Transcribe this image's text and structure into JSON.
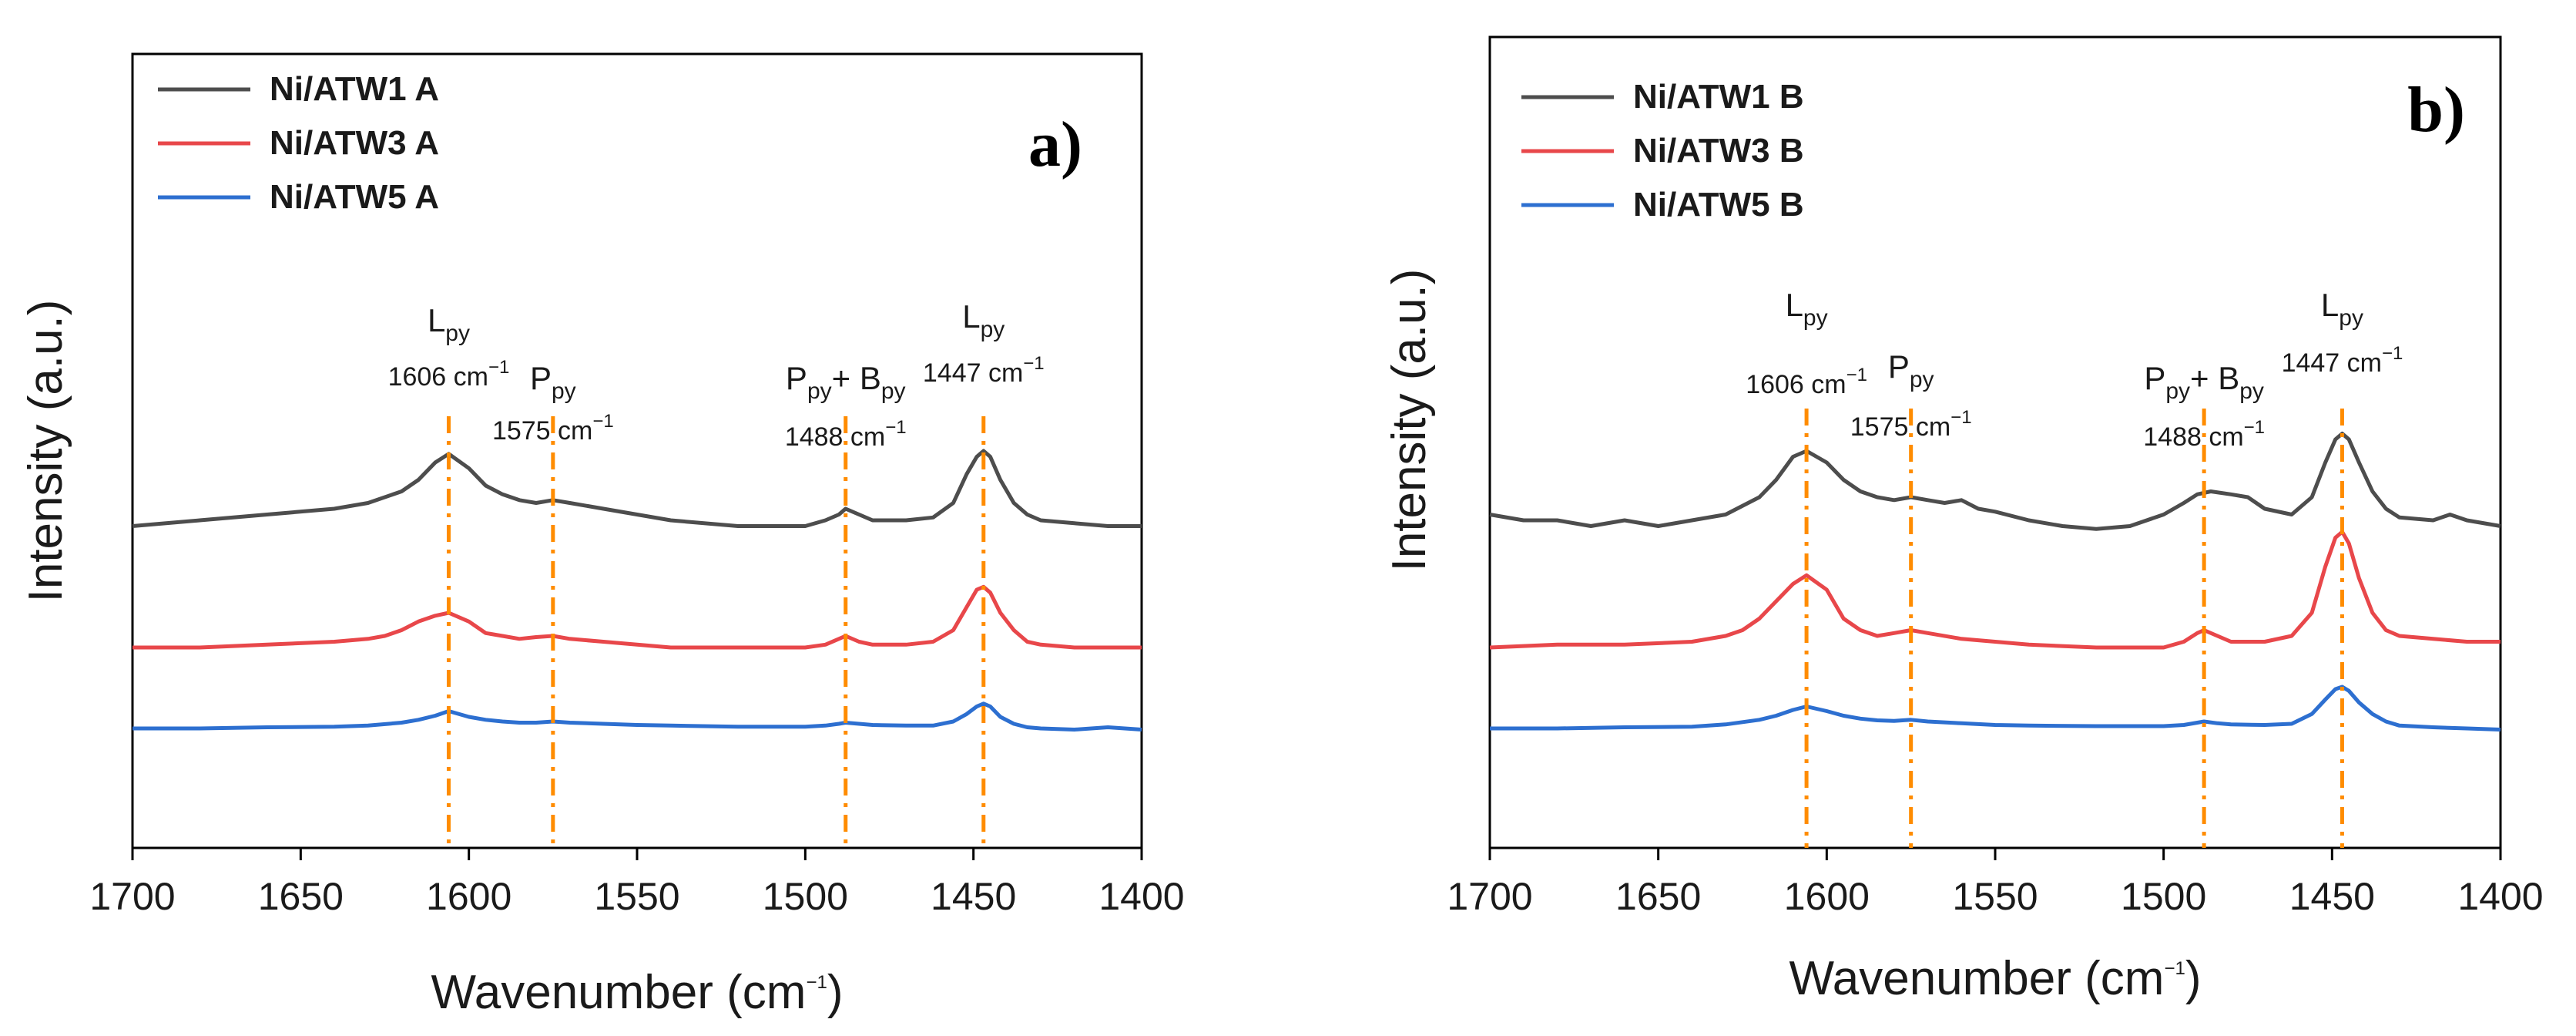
{
  "chart_data": [
    {
      "type": "line",
      "panel_label": "a)",
      "xlabel": "Wavenumber (cm",
      "xlabel_sup": "−1",
      "xlabel_end": ")",
      "ylabel": "Intensity (a.u.)",
      "xlim": [
        1700,
        1400
      ],
      "x_reversed": true,
      "ylim": [
        0,
        1
      ],
      "y_ticks_shown": false,
      "x_ticks": [
        1700,
        1650,
        1600,
        1550,
        1500,
        1450,
        1400
      ],
      "legend_position": "top-left",
      "series": [
        {
          "name": "Ni/ATW1 A",
          "color": "#4d4d4d",
          "x": [
            1700,
            1680,
            1660,
            1640,
            1630,
            1620,
            1615,
            1610,
            1606,
            1600,
            1595,
            1590,
            1585,
            1580,
            1575,
            1570,
            1560,
            1550,
            1540,
            1520,
            1500,
            1494,
            1490,
            1488,
            1484,
            1480,
            1470,
            1462,
            1456,
            1452,
            1449,
            1447,
            1445,
            1442,
            1438,
            1434,
            1430,
            1420,
            1410,
            1400
          ],
          "y": [
            0.49,
            0.5,
            0.51,
            0.52,
            0.53,
            0.55,
            0.57,
            0.6,
            0.615,
            0.59,
            0.56,
            0.545,
            0.535,
            0.53,
            0.535,
            0.53,
            0.52,
            0.51,
            0.5,
            0.49,
            0.49,
            0.5,
            0.51,
            0.52,
            0.51,
            0.5,
            0.5,
            0.505,
            0.53,
            0.58,
            0.61,
            0.62,
            0.61,
            0.57,
            0.53,
            0.51,
            0.5,
            0.495,
            0.49,
            0.49
          ]
        },
        {
          "name": "Ni/ATW3 A",
          "color": "#e8474a",
          "x": [
            1700,
            1680,
            1660,
            1640,
            1630,
            1625,
            1620,
            1615,
            1610,
            1606,
            1600,
            1595,
            1590,
            1585,
            1580,
            1575,
            1570,
            1560,
            1550,
            1540,
            1520,
            1500,
            1494,
            1490,
            1488,
            1484,
            1480,
            1470,
            1462,
            1456,
            1452,
            1449,
            1447,
            1445,
            1442,
            1438,
            1434,
            1430,
            1420,
            1410,
            1400
          ],
          "y": [
            0.28,
            0.28,
            0.285,
            0.29,
            0.295,
            0.3,
            0.31,
            0.325,
            0.335,
            0.34,
            0.325,
            0.305,
            0.3,
            0.295,
            0.298,
            0.3,
            0.295,
            0.29,
            0.285,
            0.28,
            0.28,
            0.28,
            0.285,
            0.295,
            0.3,
            0.29,
            0.285,
            0.285,
            0.29,
            0.31,
            0.35,
            0.38,
            0.385,
            0.375,
            0.34,
            0.31,
            0.29,
            0.285,
            0.28,
            0.28,
            0.28
          ]
        },
        {
          "name": "Ni/ATW5 A",
          "color": "#2d6fd0",
          "x": [
            1700,
            1680,
            1660,
            1640,
            1630,
            1620,
            1615,
            1610,
            1606,
            1600,
            1595,
            1590,
            1585,
            1580,
            1575,
            1570,
            1560,
            1550,
            1540,
            1520,
            1500,
            1494,
            1490,
            1488,
            1484,
            1480,
            1470,
            1462,
            1456,
            1452,
            1449,
            1447,
            1445,
            1442,
            1438,
            1434,
            1430,
            1420,
            1410,
            1400
          ],
          "y": [
            0.14,
            0.14,
            0.142,
            0.143,
            0.145,
            0.15,
            0.155,
            0.162,
            0.17,
            0.16,
            0.155,
            0.152,
            0.15,
            0.15,
            0.152,
            0.15,
            0.148,
            0.146,
            0.145,
            0.143,
            0.143,
            0.145,
            0.148,
            0.15,
            0.148,
            0.146,
            0.145,
            0.145,
            0.152,
            0.165,
            0.178,
            0.183,
            0.178,
            0.16,
            0.148,
            0.142,
            0.14,
            0.138,
            0.142,
            0.138
          ]
        }
      ],
      "annotations": [
        {
          "name": "L",
          "sub": "py",
          "wave": "1606 cm",
          "wave_sup": "−1",
          "x": 1606
        },
        {
          "name": "P",
          "sub": "py",
          "wave": "1575 cm",
          "wave_sup": "−1",
          "x": 1575
        },
        {
          "name": "P",
          "sub": "py",
          "name2": "+ B",
          "sub2": "py",
          "wave": "1488 cm",
          "wave_sup": "−1",
          "x": 1488
        },
        {
          "name": "L",
          "sub": "py",
          "wave": "1447 cm",
          "wave_sup": "−1",
          "x": 1447
        }
      ]
    },
    {
      "type": "line",
      "panel_label": "b)",
      "xlabel": "Wavenumber (cm",
      "xlabel_sup": "−1",
      "xlabel_end": ")",
      "ylabel": "Intensity (a.u.)",
      "xlim": [
        1700,
        1400
      ],
      "x_reversed": true,
      "ylim": [
        0,
        1
      ],
      "y_ticks_shown": false,
      "x_ticks": [
        1700,
        1650,
        1600,
        1550,
        1500,
        1450,
        1400
      ],
      "legend_position": "top-left",
      "series": [
        {
          "name": "Ni/ATW1 B",
          "color": "#4d4d4d",
          "x": [
            1700,
            1690,
            1680,
            1670,
            1660,
            1650,
            1640,
            1630,
            1620,
            1615,
            1610,
            1606,
            1600,
            1595,
            1590,
            1585,
            1580,
            1575,
            1570,
            1565,
            1560,
            1555,
            1550,
            1540,
            1530,
            1520,
            1510,
            1500,
            1494,
            1490,
            1486,
            1480,
            1475,
            1470,
            1462,
            1456,
            1452,
            1449,
            1447,
            1445,
            1442,
            1438,
            1434,
            1430,
            1420,
            1415,
            1410,
            1400
          ],
          "y": [
            0.51,
            0.5,
            0.5,
            0.49,
            0.5,
            0.49,
            0.5,
            0.51,
            0.54,
            0.57,
            0.61,
            0.62,
            0.6,
            0.57,
            0.55,
            0.54,
            0.535,
            0.54,
            0.535,
            0.53,
            0.535,
            0.52,
            0.515,
            0.5,
            0.49,
            0.485,
            0.49,
            0.51,
            0.53,
            0.545,
            0.55,
            0.545,
            0.54,
            0.52,
            0.51,
            0.54,
            0.6,
            0.64,
            0.65,
            0.64,
            0.6,
            0.55,
            0.52,
            0.505,
            0.5,
            0.51,
            0.5,
            0.49
          ]
        },
        {
          "name": "Ni/ATW3 B",
          "color": "#e8474a",
          "x": [
            1700,
            1680,
            1660,
            1640,
            1630,
            1625,
            1620,
            1615,
            1610,
            1606,
            1600,
            1595,
            1590,
            1585,
            1580,
            1575,
            1570,
            1560,
            1550,
            1540,
            1520,
            1500,
            1494,
            1490,
            1488,
            1484,
            1480,
            1470,
            1462,
            1456,
            1452,
            1449,
            1447,
            1445,
            1442,
            1438,
            1434,
            1430,
            1420,
            1410,
            1400
          ],
          "y": [
            0.28,
            0.285,
            0.285,
            0.29,
            0.3,
            0.31,
            0.33,
            0.36,
            0.39,
            0.405,
            0.38,
            0.33,
            0.31,
            0.3,
            0.305,
            0.31,
            0.305,
            0.295,
            0.29,
            0.285,
            0.28,
            0.28,
            0.29,
            0.305,
            0.31,
            0.3,
            0.29,
            0.29,
            0.3,
            0.34,
            0.42,
            0.47,
            0.48,
            0.46,
            0.4,
            0.34,
            0.31,
            0.3,
            0.295,
            0.29,
            0.29
          ]
        },
        {
          "name": "Ni/ATW5 B",
          "color": "#2d6fd0",
          "x": [
            1700,
            1680,
            1660,
            1640,
            1630,
            1620,
            1615,
            1610,
            1606,
            1600,
            1595,
            1590,
            1585,
            1580,
            1575,
            1570,
            1560,
            1550,
            1540,
            1520,
            1500,
            1494,
            1490,
            1488,
            1484,
            1480,
            1470,
            1462,
            1456,
            1452,
            1449,
            1447,
            1445,
            1442,
            1438,
            1434,
            1430,
            1420,
            1410,
            1400
          ],
          "y": [
            0.14,
            0.14,
            0.142,
            0.143,
            0.147,
            0.155,
            0.162,
            0.172,
            0.178,
            0.17,
            0.162,
            0.157,
            0.154,
            0.153,
            0.155,
            0.152,
            0.149,
            0.146,
            0.145,
            0.144,
            0.144,
            0.146,
            0.15,
            0.152,
            0.149,
            0.147,
            0.146,
            0.148,
            0.165,
            0.19,
            0.208,
            0.212,
            0.205,
            0.185,
            0.165,
            0.152,
            0.145,
            0.142,
            0.14,
            0.138
          ]
        }
      ],
      "annotations": [
        {
          "name": "L",
          "sub": "py",
          "wave": "1606 cm",
          "wave_sup": "−1",
          "x": 1606
        },
        {
          "name": "P",
          "sub": "py",
          "wave": "1575 cm",
          "wave_sup": "−1",
          "x": 1575
        },
        {
          "name": "P",
          "sub": "py",
          "name2": "+ B",
          "sub2": "py",
          "wave": "1488 cm",
          "wave_sup": "−1",
          "x": 1488
        },
        {
          "name": "L",
          "sub": "py",
          "wave": "1447 cm",
          "wave_sup": "−1",
          "x": 1447
        }
      ]
    }
  ],
  "colors": {
    "guide_line": "#ff8c00",
    "axis": "#000000"
  }
}
